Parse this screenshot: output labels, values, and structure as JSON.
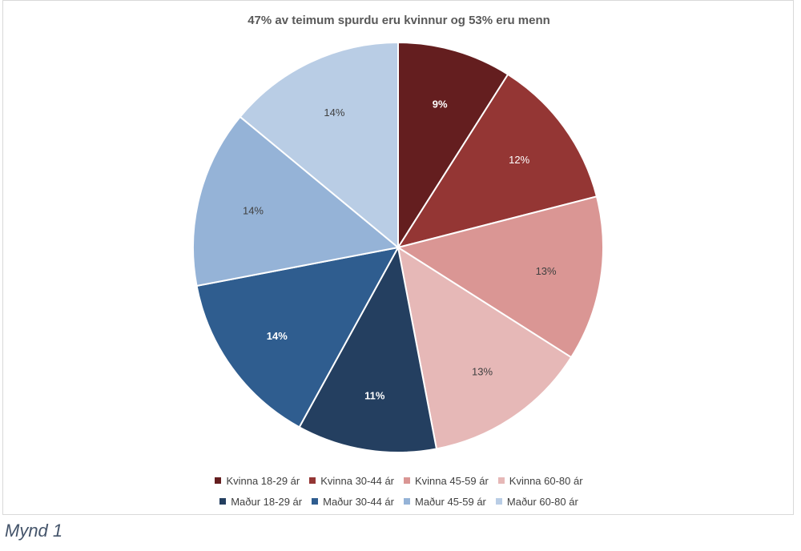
{
  "chart_data": {
    "type": "pie",
    "title": "47% av teimum spurdu eru kvinnur og 53% eru menn",
    "slices": [
      {
        "label": "Kvinna 18-29 ár",
        "value": 9,
        "value_label": "9%",
        "color": "#641e1f",
        "label_color": "#ffffff",
        "label_bold": true
      },
      {
        "label": "Kvinna 30-44 ár",
        "value": 12,
        "value_label": "12%",
        "color": "#943634",
        "label_color": "#ffffff",
        "label_bold": false
      },
      {
        "label": "Kvinna 45-59 ár",
        "value": 13,
        "value_label": "13%",
        "color": "#da9694",
        "label_color": "#404040",
        "label_bold": false
      },
      {
        "label": "Kvinna 60-80 ár",
        "value": 13,
        "value_label": "13%",
        "color": "#e6b8b7",
        "label_color": "#404040",
        "label_bold": false
      },
      {
        "label": "Maður 18-29 ár",
        "value": 11,
        "value_label": "11%",
        "color": "#243f60",
        "label_color": "#ffffff",
        "label_bold": true
      },
      {
        "label": "Maður 30-44 ár",
        "value": 14,
        "value_label": "14%",
        "color": "#2f5d8f",
        "label_color": "#ffffff",
        "label_bold": true
      },
      {
        "label": "Maður 45-59 ár",
        "value": 14,
        "value_label": "14%",
        "color": "#95b3d7",
        "label_color": "#404040",
        "label_bold": false
      },
      {
        "label": "Maður 60-80 ár",
        "value": 14,
        "value_label": "14%",
        "color": "#b9cde5",
        "label_color": "#404040",
        "label_bold": false
      }
    ],
    "legend_position": "bottom"
  },
  "caption": "Mynd 1"
}
